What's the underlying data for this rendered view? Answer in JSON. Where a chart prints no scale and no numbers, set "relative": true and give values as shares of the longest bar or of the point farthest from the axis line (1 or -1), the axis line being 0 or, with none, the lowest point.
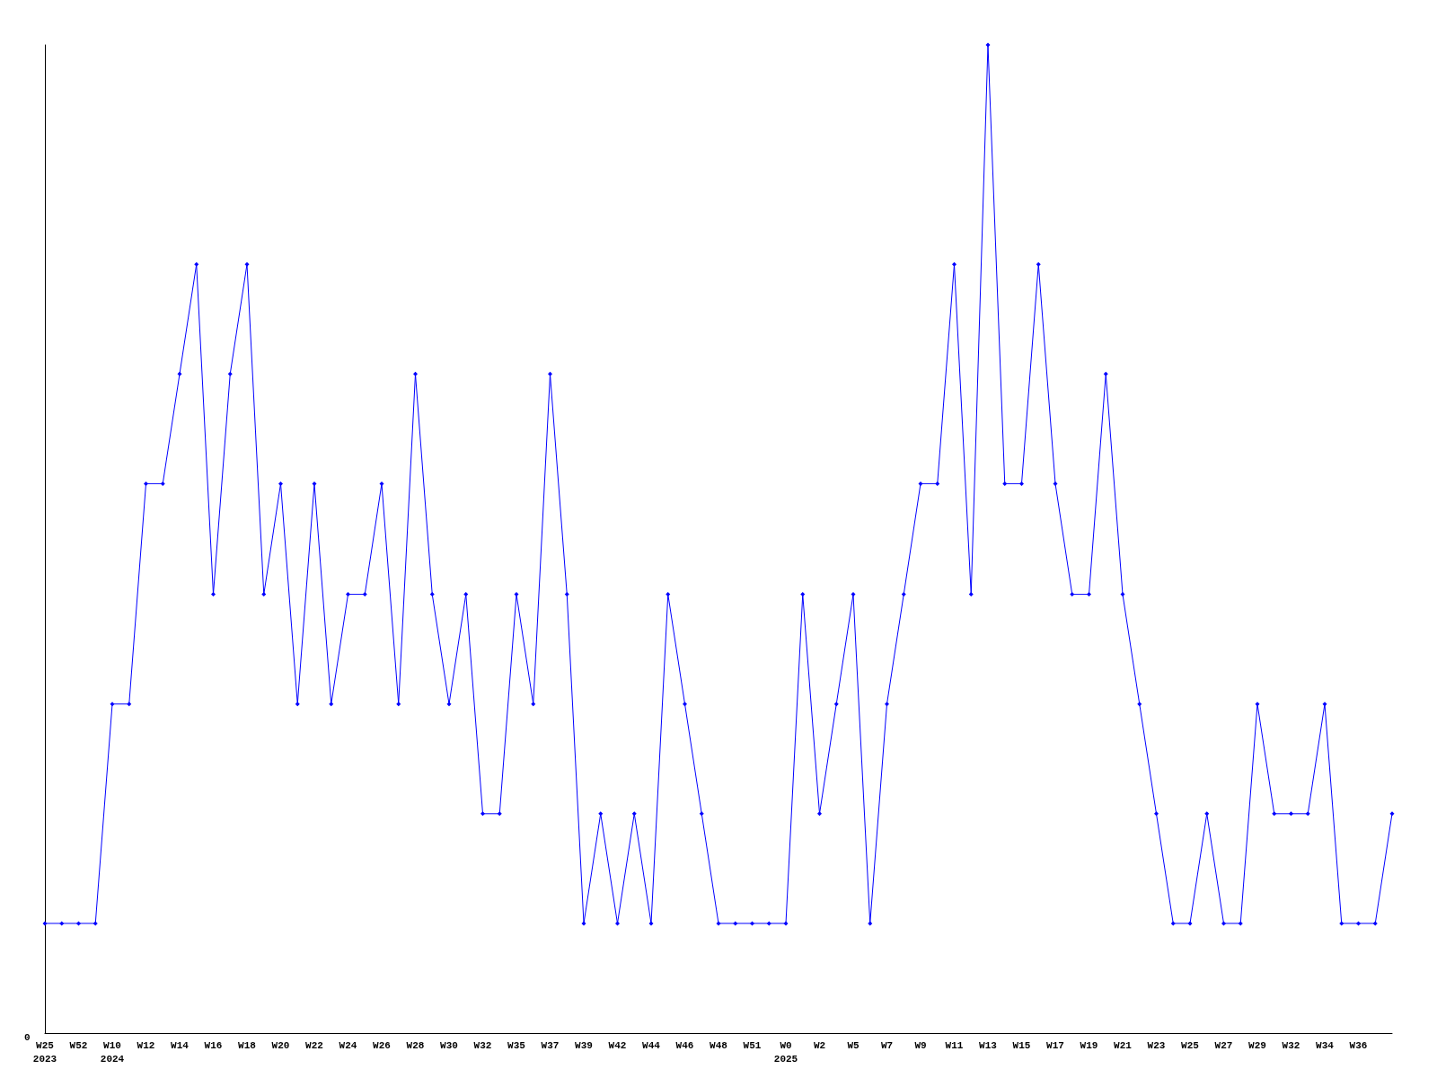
{
  "chart_data": {
    "type": "line",
    "relative": true,
    "marker": "diamond",
    "line_style": "solid",
    "grid": false,
    "annotations": [
      "0"
    ],
    "categories": [
      "W25\n2023",
      null,
      "W52",
      null,
      "W10\n2024",
      null,
      "W12",
      null,
      "W14",
      null,
      "W16",
      null,
      "W18",
      null,
      "W20",
      null,
      "W22",
      null,
      "W24",
      null,
      "W26",
      null,
      "W28",
      null,
      "W30",
      null,
      "W32",
      null,
      "W35",
      null,
      "W37",
      null,
      "W39",
      null,
      "W42",
      null,
      "W44",
      null,
      "W46",
      null,
      "W48",
      null,
      "W51",
      null,
      "W0\n2025",
      null,
      "W2",
      null,
      "W5",
      null,
      "W7",
      null,
      "W9",
      null,
      "W11",
      null,
      "W13",
      null,
      "W15",
      null,
      "W17",
      null,
      "W19",
      null,
      "W21",
      null,
      "W23",
      null,
      "W25",
      null,
      "W27",
      null,
      "W29",
      null,
      "W32",
      null,
      "W34",
      null,
      "W36",
      null,
      null
    ],
    "series": [
      {
        "color": "#0000ff",
        "values": [
          0.111,
          0.111,
          0.111,
          0.111,
          0.333,
          0.333,
          0.556,
          0.556,
          0.667,
          0.778,
          0.444,
          0.667,
          0.778,
          0.444,
          0.556,
          0.333,
          0.556,
          0.333,
          0.444,
          0.444,
          0.556,
          0.333,
          0.667,
          0.444,
          0.333,
          0.444,
          0.222,
          0.222,
          0.444,
          0.333,
          0.667,
          0.444,
          0.111,
          0.222,
          0.111,
          0.222,
          0.111,
          0.444,
          0.333,
          0.222,
          0.111,
          0.111,
          0.111,
          0.111,
          0.111,
          0.444,
          0.222,
          0.333,
          0.444,
          0.111,
          0.333,
          0.444,
          0.556,
          0.556,
          0.778,
          0.444,
          1,
          0.556,
          0.556,
          0.778,
          0.556,
          0.444,
          0.444,
          0.667,
          0.444,
          0.333,
          0.222,
          0.111,
          0.111,
          0.222,
          0.111,
          0.111,
          0.333,
          0.222,
          0.222,
          0.222,
          0.333,
          0.111,
          0.111,
          0.111,
          0.222
        ]
      }
    ]
  }
}
